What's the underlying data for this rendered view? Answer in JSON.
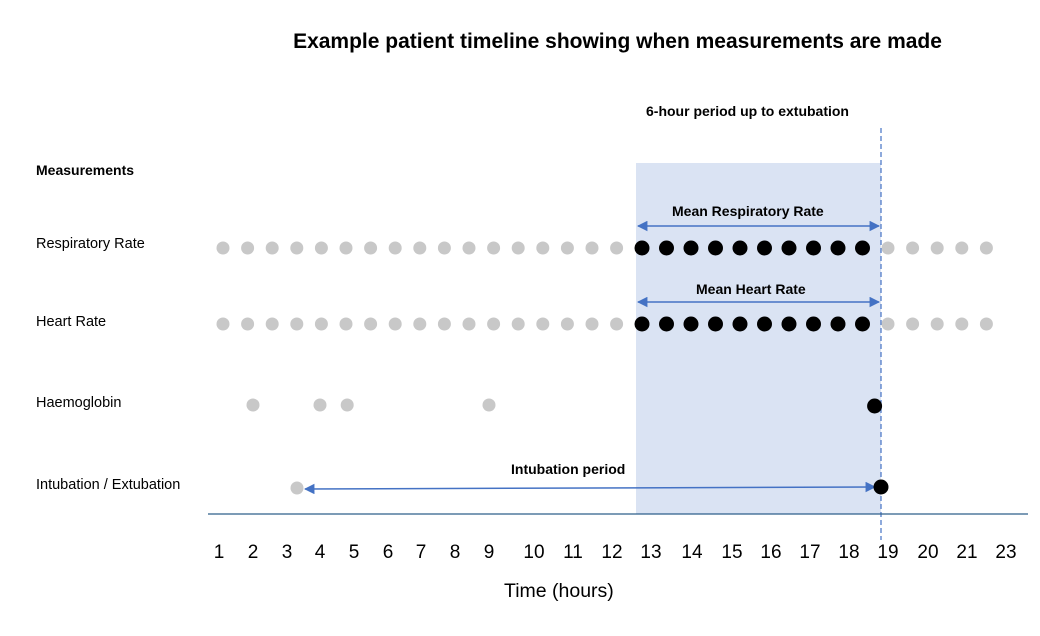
{
  "title": "Example patient timeline showing when measurements are made",
  "window_label": "6-hour period up to extubation",
  "section_label": "Measurements",
  "rows": {
    "respiratory_rate": "Respiratory Rate",
    "heart_rate": "Heart Rate",
    "haemoglobin": "Haemoglobin",
    "intubation": "Intubation / Extubation"
  },
  "arrows": {
    "mean_respiratory_rate": "Mean Respiratory Rate",
    "mean_heart_rate": "Mean Heart Rate",
    "intubation_period": "Intubation period"
  },
  "x_axis": {
    "title": "Time (hours)",
    "ticks": [
      "1",
      "2",
      "3",
      "4",
      "5",
      "6",
      "7",
      "8",
      "9",
      "10",
      "11",
      "12",
      "13",
      "14",
      "15",
      "16",
      "17",
      "18",
      "19",
      "20",
      "21",
      "23"
    ]
  },
  "colors": {
    "inactive_point": "#c8c8c8",
    "active_point": "#000000",
    "window_fill": "#dae3f3",
    "arrow": "#4472c4",
    "axis": "#2e5f8a"
  },
  "series": {
    "respiratory_rate": {
      "grey_count": 17,
      "black_count": 10,
      "grey_after_count": 5
    },
    "heart_rate": {
      "grey_count": 17,
      "black_count": 10,
      "grey_after_count": 5
    },
    "haemoglobin": {
      "grey_hours": [
        2,
        4,
        4.8,
        9
      ],
      "black_hours": [
        18.4
      ]
    },
    "intubation": {
      "start_hour": 3.2,
      "extubation_hour": 19.8
    }
  }
}
